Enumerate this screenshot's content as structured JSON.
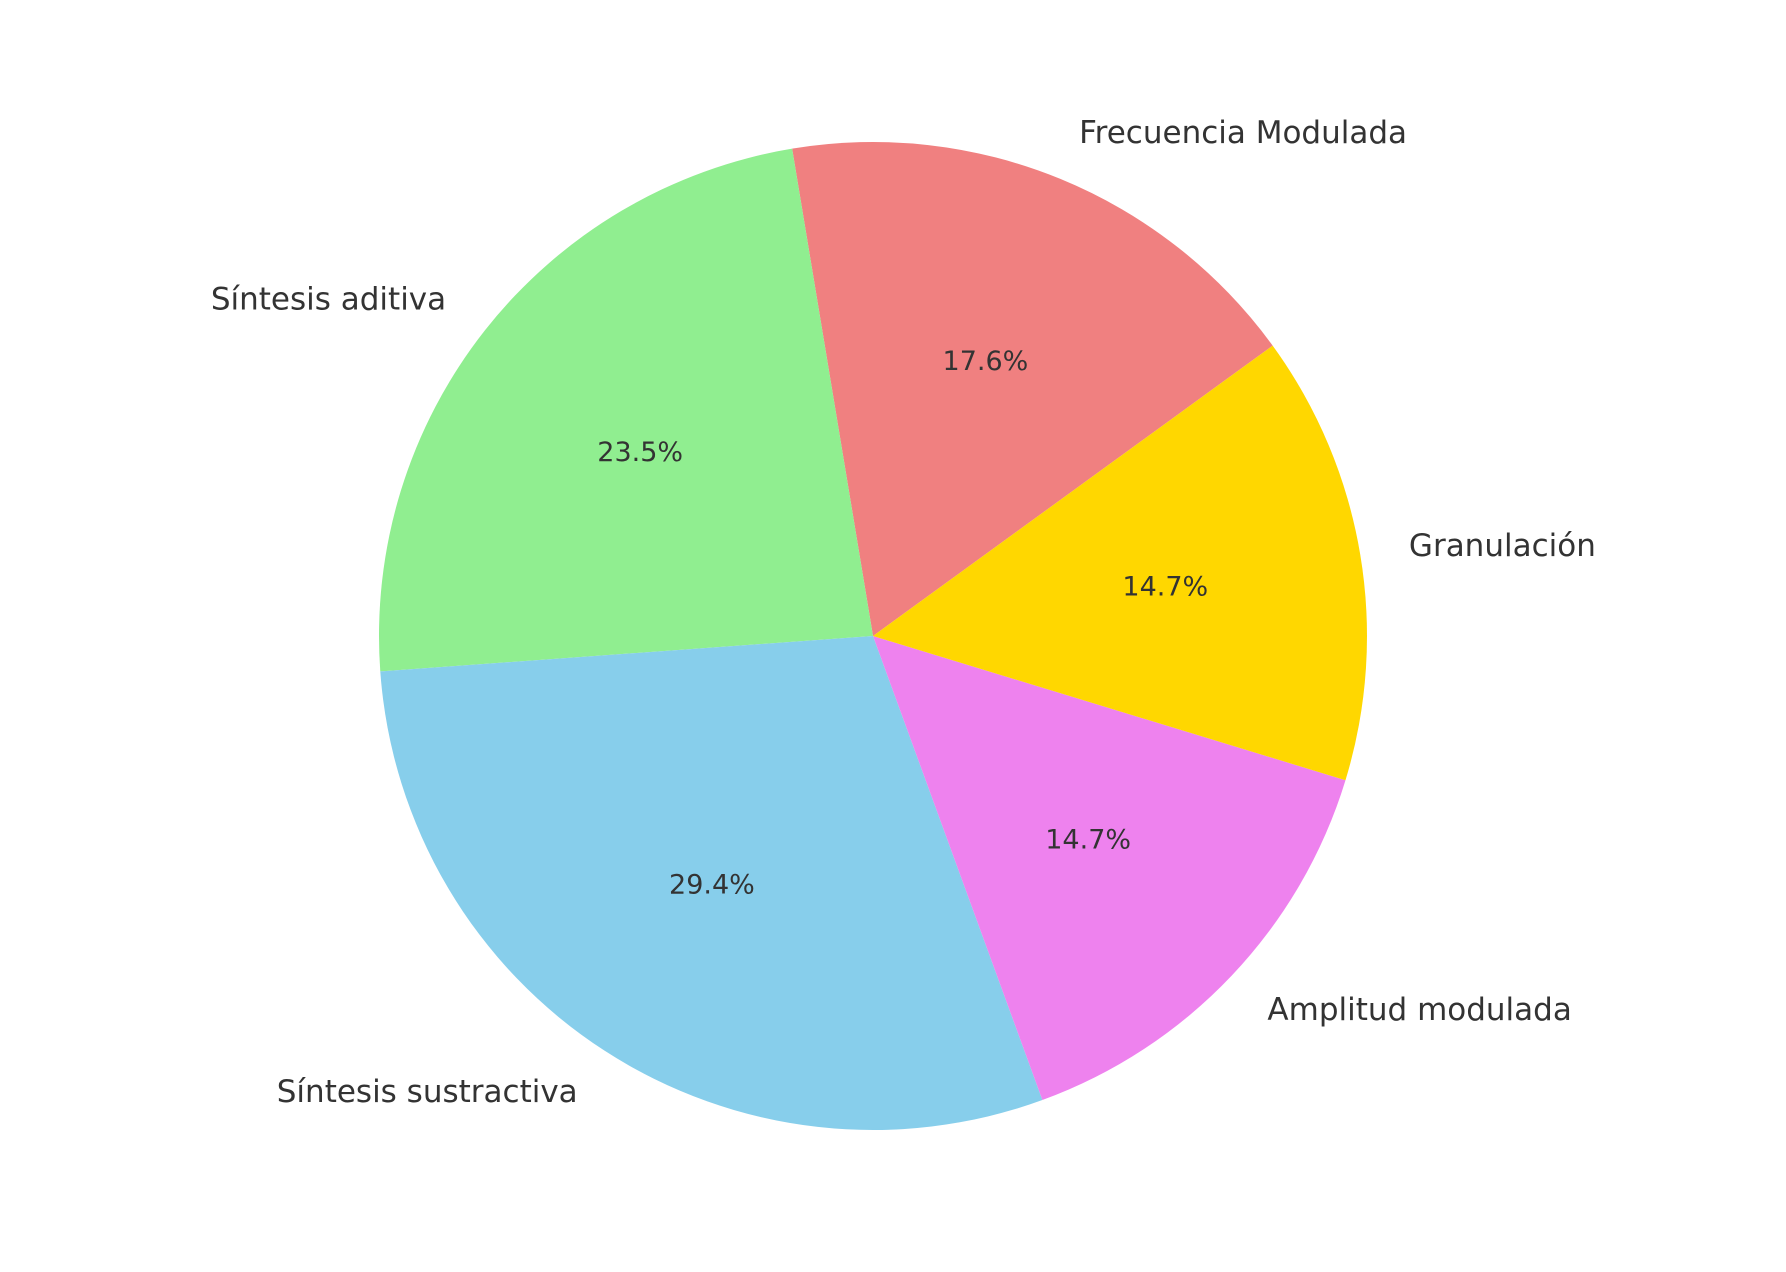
{
  "chart_data": {
    "type": "pie",
    "title": "",
    "slices": [
      {
        "label": "Frecuencia Modulada",
        "value": 17.6,
        "pct_label": "17.6%",
        "color": "#F08080"
      },
      {
        "label": "Síntesis aditiva",
        "value": 23.5,
        "pct_label": "23.5%",
        "color": "#90EE90"
      },
      {
        "label": "Síntesis sustractiva",
        "value": 29.4,
        "pct_label": "29.4%",
        "color": "#87CEEB"
      },
      {
        "label": "Amplitud modulada",
        "value": 14.7,
        "pct_label": "14.7%",
        "color": "#EE82EE"
      },
      {
        "label": "Granulación",
        "value": 14.7,
        "pct_label": "14.7%",
        "color": "#FFD700"
      }
    ],
    "start_angle_deg": 36,
    "direction": "counterclockwise",
    "legend": "none"
  }
}
